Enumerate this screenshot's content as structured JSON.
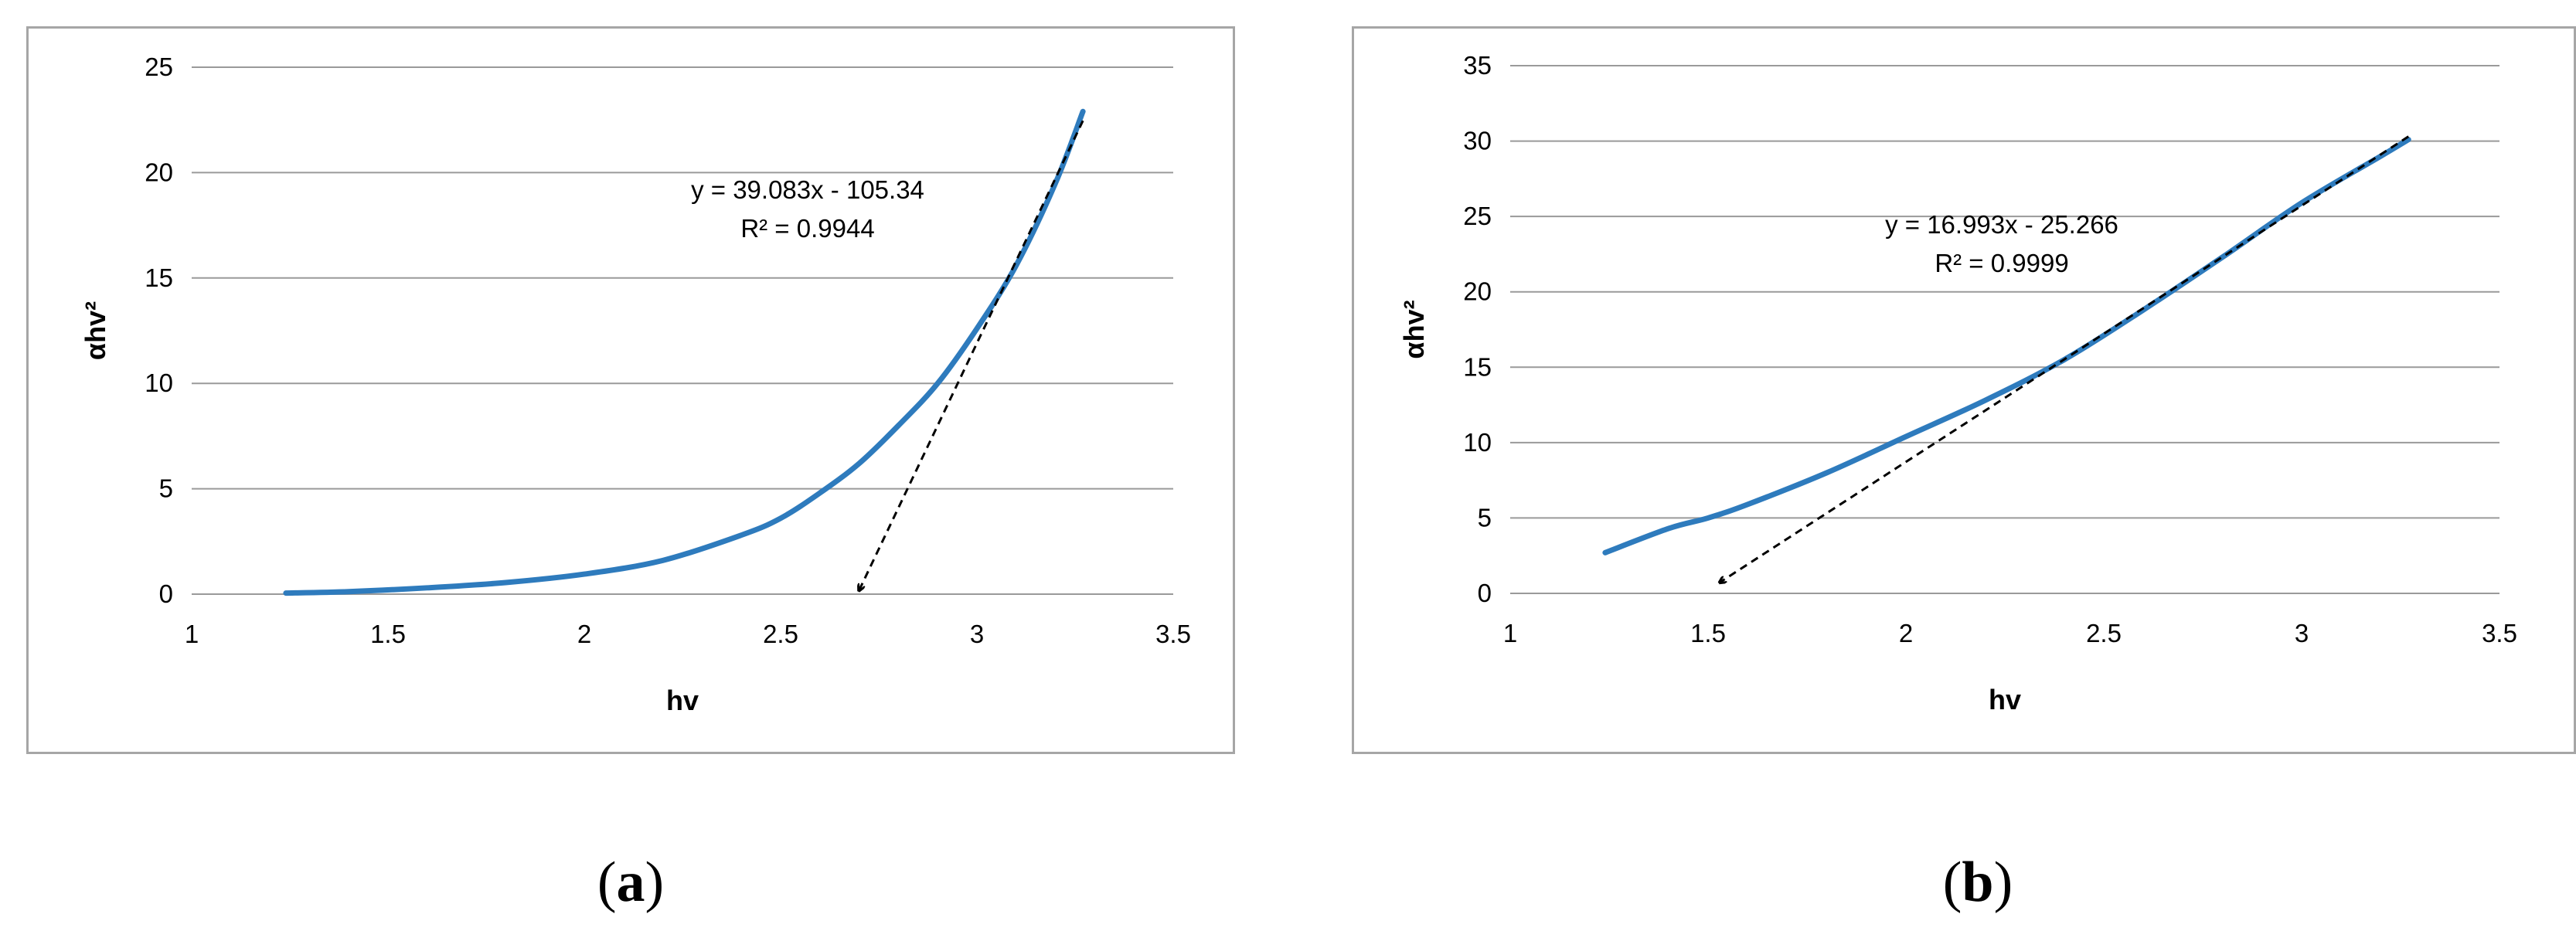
{
  "colors": {
    "series": "#2e7bbd",
    "trendline": "#000000",
    "grid": "#9a9a9a",
    "axis_text": "#000000",
    "frame": "#a6a6a6"
  },
  "chart_data": [
    {
      "type": "line",
      "panel_label": "a",
      "xlabel": "hv",
      "ylabel": "αhv²",
      "xlim": [
        1,
        3.5
      ],
      "ylim": [
        0,
        25
      ],
      "xticks": [
        "1",
        "1.5",
        "2",
        "2.5",
        "3",
        "3.5"
      ],
      "yticks": [
        "0",
        "5",
        "10",
        "15",
        "20",
        "25"
      ],
      "grid": "horizontal",
      "legend": "none",
      "series": [
        {
          "x": [
            1.24,
            1.4,
            1.6,
            1.8,
            2.0,
            2.2,
            2.4,
            2.5,
            2.6,
            2.7,
            2.8,
            2.9,
            3.0,
            3.1,
            3.2,
            3.27
          ],
          "y": [
            0.05,
            0.12,
            0.3,
            0.55,
            0.95,
            1.6,
            2.8,
            3.6,
            4.8,
            6.2,
            8.0,
            10.0,
            12.6,
            15.6,
            19.5,
            22.9
          ]
        }
      ],
      "trendline": {
        "equation": "y = 39.083x - 105.34",
        "r_squared": "R² = 0.9944",
        "slope": 39.083,
        "intercept": -105.34,
        "x_start": 3.27,
        "x_end": 2.7,
        "style": "dashed, arrow at lower end"
      }
    },
    {
      "type": "line",
      "panel_label": "b",
      "xlabel": "hv",
      "ylabel": "αhv²",
      "xlim": [
        1,
        3.5
      ],
      "ylim": [
        0,
        35
      ],
      "xticks": [
        "1",
        "1.5",
        "2",
        "2.5",
        "3",
        "3.5"
      ],
      "yticks": [
        "0",
        "5",
        "10",
        "15",
        "20",
        "25",
        "30",
        "35"
      ],
      "grid": "horizontal",
      "legend": "none",
      "series": [
        {
          "x": [
            1.24,
            1.4,
            1.5,
            1.6,
            1.8,
            2.0,
            2.2,
            2.4,
            2.6,
            2.8,
            3.0,
            3.2,
            3.27
          ],
          "y": [
            2.7,
            4.3,
            5.0,
            5.9,
            8.0,
            10.4,
            12.8,
            15.5,
            18.8,
            22.3,
            25.9,
            29.0,
            30.1
          ]
        }
      ],
      "trendline": {
        "equation": "y = 16.993x - 25.266",
        "r_squared": "R² = 0.9999",
        "slope": 16.993,
        "intercept": -25.266,
        "x_start": 3.27,
        "x_end": 1.53,
        "style": "dashed, arrow at lower end"
      }
    }
  ]
}
